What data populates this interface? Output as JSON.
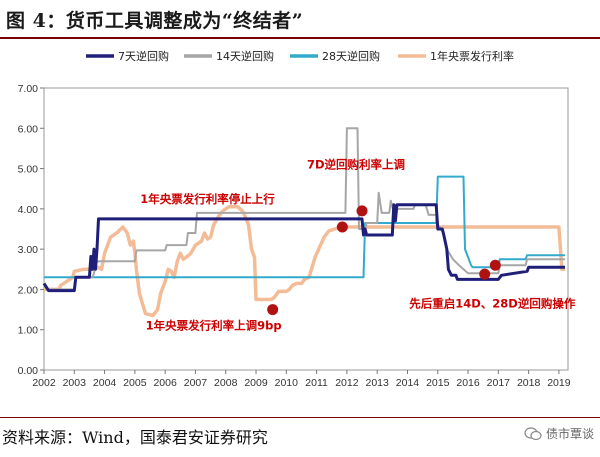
{
  "figure_title": "图 4：货币工具调整成为“终结者”",
  "source_note": "资料来源：Wind，国泰君安证券研究",
  "watermark_text": "债市覃谈",
  "colors": {
    "s7d": "#1f1f7a",
    "s14d": "#a6a6a6",
    "s28d": "#33aacc",
    "cbill": "#f4bc96",
    "marker": "#b01212",
    "annotation": "#cc0000",
    "rule": "#7a0000"
  },
  "chart_data": {
    "type": "line",
    "title": "",
    "xlabel": "",
    "ylabel": "",
    "xlim": [
      2002,
      2019.3
    ],
    "ylim": [
      0,
      7
    ],
    "x_ticks": [
      "2002",
      "2003",
      "2004",
      "2005",
      "2006",
      "2007",
      "2008",
      "2009",
      "2010",
      "2011",
      "2012",
      "2013",
      "2014",
      "2015",
      "2016",
      "2017",
      "2018",
      "2019"
    ],
    "y_ticks": [
      "0.00",
      "1.00",
      "2.00",
      "3.00",
      "4.00",
      "5.00",
      "6.00",
      "7.00"
    ],
    "grid": false,
    "legend_position": "top",
    "series": [
      {
        "name": "7天逆回购",
        "color_key": "s7d",
        "points": [
          [
            2002.0,
            2.15
          ],
          [
            2002.15,
            1.97
          ],
          [
            2003.0,
            1.97
          ],
          [
            2003.05,
            2.3
          ],
          [
            2003.5,
            2.3
          ],
          [
            2003.55,
            2.82
          ],
          [
            2003.6,
            2.5
          ],
          [
            2003.65,
            3.0
          ],
          [
            2003.7,
            2.5
          ],
          [
            2003.75,
            3.0
          ],
          [
            2003.8,
            3.75
          ],
          [
            2012.5,
            3.75
          ],
          [
            2012.55,
            3.35
          ],
          [
            2012.6,
            3.5
          ],
          [
            2012.65,
            3.35
          ],
          [
            2013.5,
            3.35
          ],
          [
            2013.55,
            4.1
          ],
          [
            2013.6,
            3.7
          ],
          [
            2013.65,
            4.1
          ],
          [
            2014.95,
            4.1
          ],
          [
            2015.0,
            3.5
          ],
          [
            2015.15,
            3.5
          ],
          [
            2015.2,
            3.35
          ],
          [
            2015.3,
            3.0
          ],
          [
            2015.35,
            2.5
          ],
          [
            2015.45,
            2.35
          ],
          [
            2015.6,
            2.35
          ],
          [
            2015.65,
            2.25
          ],
          [
            2017.0,
            2.25
          ],
          [
            2017.1,
            2.35
          ],
          [
            2017.95,
            2.45
          ],
          [
            2018.0,
            2.55
          ],
          [
            2019.2,
            2.55
          ]
        ]
      },
      {
        "name": "14天逆回购",
        "color_key": "s14d",
        "points": [
          [
            2002.0,
            2.1
          ],
          [
            2002.15,
            2.0
          ],
          [
            2003.0,
            2.0
          ],
          [
            2003.05,
            2.3
          ],
          [
            2003.6,
            2.3
          ],
          [
            2003.65,
            2.4
          ],
          [
            2003.7,
            2.65
          ],
          [
            2003.8,
            2.7
          ],
          [
            2005.0,
            2.7
          ],
          [
            2005.05,
            2.97
          ],
          [
            2006.0,
            2.97
          ],
          [
            2006.05,
            3.1
          ],
          [
            2006.7,
            3.1
          ],
          [
            2006.75,
            3.4
          ],
          [
            2007.0,
            3.4
          ],
          [
            2007.05,
            3.9
          ],
          [
            2011.95,
            3.9
          ],
          [
            2012.0,
            6.0
          ],
          [
            2012.35,
            6.0
          ],
          [
            2012.4,
            3.5
          ],
          [
            2012.6,
            3.5
          ],
          [
            2012.65,
            3.65
          ],
          [
            2013.0,
            3.65
          ],
          [
            2013.05,
            4.4
          ],
          [
            2013.15,
            3.9
          ],
          [
            2013.4,
            3.9
          ],
          [
            2013.45,
            4.2
          ],
          [
            2013.55,
            3.9
          ],
          [
            2013.65,
            4.0
          ],
          [
            2014.2,
            4.0
          ],
          [
            2014.25,
            4.1
          ],
          [
            2014.6,
            4.1
          ],
          [
            2014.7,
            3.85
          ],
          [
            2014.95,
            3.85
          ],
          [
            2015.0,
            3.6
          ],
          [
            2015.2,
            3.4
          ],
          [
            2015.3,
            3.0
          ],
          [
            2015.5,
            2.75
          ],
          [
            2015.7,
            2.6
          ],
          [
            2016.0,
            2.4
          ],
          [
            2017.0,
            2.4
          ],
          [
            2017.05,
            2.6
          ],
          [
            2017.9,
            2.6
          ],
          [
            2017.95,
            2.75
          ],
          [
            2019.2,
            2.75
          ]
        ]
      },
      {
        "name": "28天逆回购",
        "color_key": "s28d",
        "points": [
          [
            2002.0,
            2.3
          ],
          [
            2012.55,
            2.3
          ],
          [
            2012.6,
            3.65
          ],
          [
            2014.95,
            3.65
          ],
          [
            2015.0,
            4.8
          ],
          [
            2015.85,
            4.8
          ],
          [
            2015.9,
            3.0
          ],
          [
            2016.1,
            2.6
          ],
          [
            2016.15,
            2.55
          ],
          [
            2017.0,
            2.55
          ],
          [
            2017.05,
            2.75
          ],
          [
            2017.9,
            2.75
          ],
          [
            2017.95,
            2.85
          ],
          [
            2019.2,
            2.85
          ]
        ]
      },
      {
        "name": "1年央票发行利率",
        "color_key": "cbill",
        "points": [
          [
            2002.0,
            2.0
          ],
          [
            2002.5,
            2.0
          ],
          [
            2002.55,
            2.1
          ],
          [
            2002.95,
            2.3
          ],
          [
            2003.0,
            2.45
          ],
          [
            2003.3,
            2.5
          ],
          [
            2003.6,
            2.5
          ],
          [
            2003.8,
            2.55
          ],
          [
            2003.9,
            2.5
          ],
          [
            2004.0,
            2.9
          ],
          [
            2004.2,
            3.3
          ],
          [
            2004.4,
            3.4
          ],
          [
            2004.6,
            3.55
          ],
          [
            2004.75,
            3.4
          ],
          [
            2004.85,
            3.1
          ],
          [
            2004.95,
            3.2
          ],
          [
            2005.0,
            2.9
          ],
          [
            2005.05,
            2.5
          ],
          [
            2005.1,
            2.2
          ],
          [
            2005.15,
            1.9
          ],
          [
            2005.25,
            1.65
          ],
          [
            2005.35,
            1.4
          ],
          [
            2005.6,
            1.35
          ],
          [
            2005.75,
            1.5
          ],
          [
            2005.85,
            1.9
          ],
          [
            2006.0,
            2.2
          ],
          [
            2006.1,
            2.5
          ],
          [
            2006.2,
            2.45
          ],
          [
            2006.3,
            2.3
          ],
          [
            2006.4,
            2.7
          ],
          [
            2006.5,
            2.9
          ],
          [
            2006.6,
            2.75
          ],
          [
            2006.7,
            2.8
          ],
          [
            2006.85,
            2.9
          ],
          [
            2007.0,
            3.1
          ],
          [
            2007.2,
            3.2
          ],
          [
            2007.3,
            3.4
          ],
          [
            2007.4,
            3.25
          ],
          [
            2007.5,
            3.3
          ],
          [
            2007.6,
            3.6
          ],
          [
            2007.75,
            3.8
          ],
          [
            2007.9,
            3.95
          ],
          [
            2008.1,
            4.05
          ],
          [
            2008.4,
            4.05
          ],
          [
            2008.55,
            3.95
          ],
          [
            2008.65,
            3.8
          ],
          [
            2008.75,
            3.6
          ],
          [
            2008.85,
            3.0
          ],
          [
            2008.95,
            2.8
          ],
          [
            2009.0,
            1.75
          ],
          [
            2009.5,
            1.75
          ],
          [
            2009.6,
            1.8
          ],
          [
            2009.75,
            1.95
          ],
          [
            2010.0,
            1.95
          ],
          [
            2010.1,
            2.0
          ],
          [
            2010.2,
            2.1
          ],
          [
            2010.35,
            2.15
          ],
          [
            2010.5,
            2.15
          ],
          [
            2010.6,
            2.25
          ],
          [
            2010.75,
            2.3
          ],
          [
            2010.85,
            2.55
          ],
          [
            2010.95,
            2.8
          ],
          [
            2011.1,
            3.05
          ],
          [
            2011.25,
            3.3
          ],
          [
            2011.4,
            3.45
          ],
          [
            2011.6,
            3.5
          ],
          [
            2011.8,
            3.55
          ],
          [
            2012.0,
            3.55
          ],
          [
            2012.5,
            3.55
          ],
          [
            2019.0,
            3.55
          ],
          [
            2019.1,
            2.5
          ],
          [
            2019.2,
            2.5
          ]
        ]
      }
    ],
    "markers": [
      {
        "x": 2009.55,
        "y": 1.5
      },
      {
        "x": 2011.85,
        "y": 3.55
      },
      {
        "x": 2012.5,
        "y": 3.95
      },
      {
        "x": 2016.55,
        "y": 2.38
      },
      {
        "x": 2016.9,
        "y": 2.6
      }
    ],
    "annotations": [
      {
        "text": "1年央票发行利率停止上行",
        "x": 2007.4,
        "y": 4.15
      },
      {
        "text": "7D逆回购利率上调",
        "x": 2012.3,
        "y": 5.0
      },
      {
        "text": "1年央票发行利率上调9bp",
        "x": 2007.6,
        "y": 1.0
      },
      {
        "text": "先后重启14D、28D逆回购操作",
        "x": 2016.8,
        "y": 1.55
      }
    ]
  }
}
